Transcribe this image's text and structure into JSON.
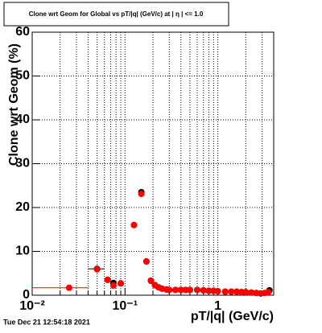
{
  "chart_data": {
    "type": "scatter",
    "title": "Clone wrt Geom for Global vs pT/|q| (GeV/c) at | η | <= 1.0",
    "x_label": "pT/|q| (GeV/c)",
    "y_label": "Clone wrt Geom (%)",
    "timestamp": "Tue Dec 21 12:54:18 2021",
    "log_x": true,
    "grid": true,
    "xlim": [
      0.01,
      4
    ],
    "xticks": [
      {
        "value": 0.01,
        "label": "10⁻²"
      },
      {
        "value": 0.1,
        "label": "10⁻¹"
      },
      1
    ],
    "xminorticks": [
      0.02,
      0.03,
      0.04,
      0.05,
      0.06,
      0.07,
      0.08,
      0.09,
      0.2,
      0.3,
      0.4,
      0.5,
      0.6,
      0.7,
      0.8,
      0.9,
      2,
      3
    ],
    "ylim": [
      0,
      60
    ],
    "yticks": [
      0,
      10,
      20,
      30,
      40,
      50,
      60
    ],
    "series": [
      {
        "color": "#000000",
        "x": [
          0.05,
          0.065,
          0.075,
          0.09,
          0.125,
          0.15,
          0.17,
          0.19,
          0.21,
          0.23,
          0.25,
          0.28,
          0.3,
          0.35,
          0.4,
          0.45,
          0.5,
          0.6,
          0.7,
          0.8,
          0.9,
          1.0,
          1.2,
          1.4,
          1.6,
          1.8,
          2.0,
          2.3,
          2.6,
          2.9,
          3.6
        ],
        "values": [
          6,
          3.5,
          2.8,
          2.7,
          16,
          23.5,
          7.7,
          3.3,
          2.3,
          1.8,
          1.5,
          1.3,
          1.2,
          1.2,
          1.2,
          1.2,
          1.2,
          1.2,
          1.1,
          1.0,
          1.0,
          0.9,
          0.8,
          0.8,
          0.8,
          0.7,
          0.7,
          0.6,
          0.5,
          0.4,
          1.1
        ],
        "xrange": [
          [
            0.04,
            0.06
          ],
          null,
          null,
          null,
          null,
          null,
          null,
          null,
          null,
          null,
          null,
          null,
          null,
          null,
          null,
          null,
          null,
          null,
          null,
          null,
          null,
          null,
          null,
          null,
          null,
          null,
          null,
          null,
          null,
          null,
          null
        ]
      },
      {
        "color": "#ff0000",
        "x": [
          0.025,
          0.05,
          0.065,
          0.075,
          0.09,
          0.125,
          0.15,
          0.17,
          0.19,
          0.21,
          0.23,
          0.25,
          0.28,
          0.3,
          0.35,
          0.4,
          0.45,
          0.5,
          0.6,
          0.7,
          0.8,
          0.9,
          1.0,
          1.2,
          1.4,
          1.6,
          1.8,
          2.0,
          2.3,
          2.6,
          2.9,
          3.2,
          3.5
        ],
        "values": [
          1.7,
          5.9,
          3.5,
          2.2,
          2.7,
          16,
          23.1,
          7.7,
          3.3,
          2.3,
          1.8,
          1.5,
          1.3,
          1.2,
          1.2,
          1.2,
          1.2,
          1.2,
          1.2,
          1.1,
          1.0,
          1.0,
          0.9,
          0.8,
          0.8,
          0.8,
          0.7,
          0.7,
          0.6,
          0.5,
          0.4,
          0.5,
          0.7
        ],
        "xrange": [
          [
            0.01,
            0.04
          ],
          null,
          null,
          null,
          null,
          null,
          null,
          null,
          null,
          null,
          null,
          null,
          null,
          null,
          null,
          null,
          null,
          null,
          null,
          null,
          null,
          null,
          null,
          null,
          null,
          null,
          null,
          null,
          null,
          null,
          null,
          null,
          null
        ]
      }
    ]
  }
}
